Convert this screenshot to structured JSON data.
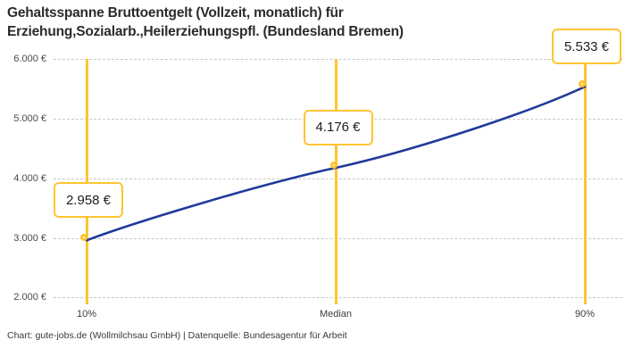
{
  "header": {
    "title": "Gehaltsspanne Bruttoentgelt (Vollzeit, monatlich) für Erziehung,Sozialarb.,Heilerziehungspfl. (Bundesland Bremen)"
  },
  "footer": {
    "text": "Chart: gute-jobs.de (Wollmilchsau GmbH) | Datenquelle: Bundesagentur für Arbeit"
  },
  "chart_data": {
    "type": "line",
    "title": "Gehaltsspanne Bruttoentgelt (Vollzeit, monatlich) für Erziehung,Sozialarb.,Heilerziehungspfl. (Bundesland Bremen)",
    "categories": [
      "10%",
      "Median",
      "90%"
    ],
    "values": [
      2958,
      4176,
      5533
    ],
    "point_labels": [
      "2.958 €",
      "4.176 €",
      "5.533 €"
    ],
    "xlabel": "",
    "ylabel": "",
    "ylim": [
      2000,
      6000
    ],
    "ytick_values": [
      2000,
      3000,
      4000,
      5000,
      6000
    ],
    "ytick_labels": [
      "2.000 €",
      "3.000 €",
      "4.000 €",
      "5.000 €",
      "6.000 €"
    ],
    "grid": "horizontal-dashed",
    "legend_position": "none",
    "annotations": "each percentile marked with vertical accent line, ring marker and value callout box",
    "colors": {
      "line": "#1F3A99",
      "accent": "#FFC431",
      "grid": "#C9C9C9",
      "callout_background": "#FFFFFF"
    }
  }
}
